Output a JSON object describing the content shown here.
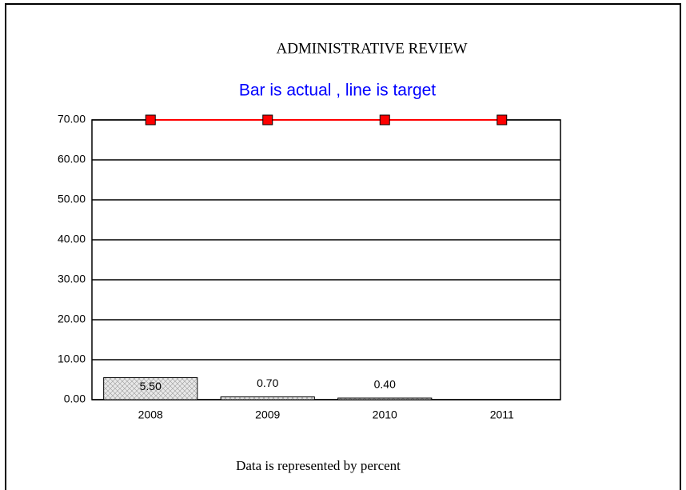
{
  "chart_data": {
    "type": "bar",
    "title": "ADMINISTRATIVE REVIEW",
    "subtitle": "Bar is actual , line is target",
    "footnote": "Data is represented by percent",
    "categories": [
      "2008",
      "2009",
      "2010",
      "2011"
    ],
    "series": [
      {
        "type": "bar",
        "color": "#d9d9d9",
        "values": [
          5.5,
          0.7,
          0.4,
          null
        ],
        "value_labels": [
          "5.50",
          "0.70",
          "0.40",
          null
        ]
      },
      {
        "type": "line",
        "color": "#ff0000",
        "values": [
          70,
          70,
          70,
          70
        ]
      }
    ],
    "ylim": [
      0,
      70
    ],
    "yticks": [
      {
        "value": 0,
        "label": "0.00"
      },
      {
        "value": 10,
        "label": "10.00"
      },
      {
        "value": 20,
        "label": "20.00"
      },
      {
        "value": 30,
        "label": "30.00"
      },
      {
        "value": 40,
        "label": "40.00"
      },
      {
        "value": 50,
        "label": "50.00"
      },
      {
        "value": 60,
        "label": "60.00"
      },
      {
        "value": 70,
        "label": "70.00"
      }
    ],
    "grid": true
  }
}
